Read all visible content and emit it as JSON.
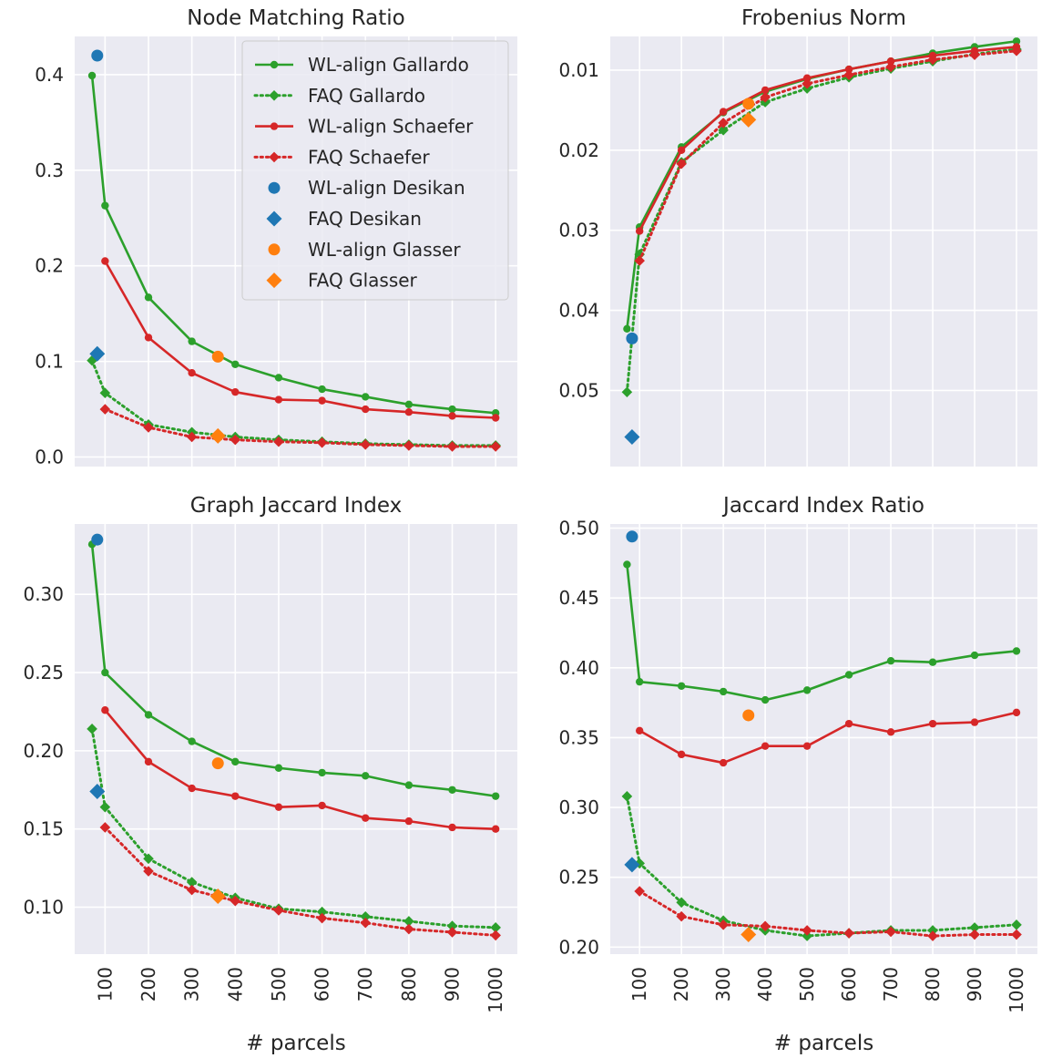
{
  "colors": {
    "gallardo": "#2ca02c",
    "schaefer": "#d62728",
    "desikan": "#1f77b4",
    "glasser": "#ff7f0e",
    "panel_bg": "#eaeaf2",
    "grid": "#ffffff"
  },
  "chart_data": [
    {
      "type": "line",
      "title": "Node Matching Ratio",
      "xlabel": "",
      "ylabel": "",
      "x_ticks": [
        "100",
        "200",
        "300",
        "400",
        "500",
        "600",
        "700",
        "800",
        "900",
        "1000"
      ],
      "y_ticks": [
        "0.0",
        "0.1",
        "0.2",
        "0.3",
        "0.4"
      ],
      "xlim": [
        30,
        1050
      ],
      "ylim": [
        -0.01,
        0.44
      ],
      "y_inverted": false,
      "grid": true,
      "legend_position": "top-right",
      "legend": [
        "WL-align Gallardo",
        "FAQ Gallardo",
        "WL-align Schaefer",
        "FAQ Schaefer",
        "WL-align Desikan",
        "FAQ Desikan",
        "WL-align Glasser",
        "FAQ Glasser"
      ],
      "series": [
        {
          "name": "WL-align Gallardo",
          "color_key": "gallardo",
          "style": "solid",
          "marker": "circle",
          "x": [
            70,
            100,
            200,
            300,
            400,
            500,
            600,
            700,
            800,
            900,
            1000
          ],
          "y": [
            0.399,
            0.263,
            0.167,
            0.121,
            0.097,
            0.083,
            0.071,
            0.063,
            0.055,
            0.05,
            0.046
          ]
        },
        {
          "name": "FAQ Gallardo",
          "color_key": "gallardo",
          "style": "dotted",
          "marker": "diamond",
          "x": [
            70,
            100,
            200,
            300,
            400,
            500,
            600,
            700,
            800,
            900,
            1000
          ],
          "y": [
            0.101,
            0.067,
            0.034,
            0.026,
            0.021,
            0.018,
            0.016,
            0.014,
            0.013,
            0.012,
            0.012
          ]
        },
        {
          "name": "WL-align Schaefer",
          "color_key": "schaefer",
          "style": "solid",
          "marker": "circle",
          "x": [
            100,
            200,
            300,
            400,
            500,
            600,
            700,
            800,
            900,
            1000
          ],
          "y": [
            0.205,
            0.125,
            0.088,
            0.068,
            0.06,
            0.059,
            0.05,
            0.047,
            0.043,
            0.041
          ]
        },
        {
          "name": "FAQ Schaefer",
          "color_key": "schaefer",
          "style": "dotted",
          "marker": "diamond",
          "x": [
            100,
            200,
            300,
            400,
            500,
            600,
            700,
            800,
            900,
            1000
          ],
          "y": [
            0.05,
            0.031,
            0.021,
            0.018,
            0.016,
            0.015,
            0.013,
            0.012,
            0.011,
            0.011
          ]
        }
      ],
      "points": [
        {
          "name": "WL-align Desikan",
          "color_key": "desikan",
          "marker": "circle",
          "x": 82,
          "y": 0.42
        },
        {
          "name": "FAQ Desikan",
          "color_key": "desikan",
          "marker": "diamond",
          "x": 82,
          "y": 0.108
        },
        {
          "name": "WL-align Glasser",
          "color_key": "glasser",
          "marker": "circle",
          "x": 360,
          "y": 0.105
        },
        {
          "name": "FAQ Glasser",
          "color_key": "glasser",
          "marker": "diamond",
          "x": 360,
          "y": 0.022
        }
      ]
    },
    {
      "type": "line",
      "title": "Frobenius Norm",
      "xlabel": "",
      "ylabel": "",
      "x_ticks": [
        "100",
        "200",
        "300",
        "400",
        "500",
        "600",
        "700",
        "800",
        "900",
        "1000"
      ],
      "y_ticks": [
        "0.01",
        "0.02",
        "0.03",
        "0.04",
        "0.05"
      ],
      "xlim": [
        30,
        1050
      ],
      "ylim": [
        0.0058,
        0.0595
      ],
      "y_inverted": true,
      "grid": true,
      "series": [
        {
          "name": "WL-align Gallardo",
          "color_key": "gallardo",
          "style": "solid",
          "marker": "circle",
          "x": [
            70,
            100,
            200,
            300,
            400,
            500,
            600,
            700,
            800,
            900,
            1000
          ],
          "y": [
            0.0423,
            0.0296,
            0.0196,
            0.0153,
            0.0127,
            0.0111,
            0.0099,
            0.0089,
            0.0079,
            0.0071,
            0.0064
          ]
        },
        {
          "name": "FAQ Gallardo",
          "color_key": "gallardo",
          "style": "dotted",
          "marker": "diamond",
          "x": [
            70,
            100,
            200,
            300,
            400,
            500,
            600,
            700,
            800,
            900,
            1000
          ],
          "y": [
            0.0502,
            0.033,
            0.0215,
            0.0175,
            0.014,
            0.0123,
            0.0109,
            0.0098,
            0.0089,
            0.008,
            0.0074
          ]
        },
        {
          "name": "WL-align Schaefer",
          "color_key": "schaefer",
          "style": "solid",
          "marker": "circle",
          "x": [
            100,
            200,
            300,
            400,
            500,
            600,
            700,
            800,
            900,
            1000
          ],
          "y": [
            0.0301,
            0.02,
            0.0152,
            0.0125,
            0.011,
            0.0099,
            0.0089,
            0.0082,
            0.0076,
            0.0071
          ]
        },
        {
          "name": "FAQ Schaefer",
          "color_key": "schaefer",
          "style": "dotted",
          "marker": "diamond",
          "x": [
            100,
            200,
            300,
            400,
            500,
            600,
            700,
            800,
            900,
            1000
          ],
          "y": [
            0.0338,
            0.0217,
            0.0166,
            0.0134,
            0.0117,
            0.0106,
            0.0096,
            0.0087,
            0.0081,
            0.0076
          ]
        }
      ],
      "points": [
        {
          "name": "WL-align Desikan",
          "color_key": "desikan",
          "marker": "circle",
          "x": 82,
          "y": 0.0435
        },
        {
          "name": "FAQ Desikan",
          "color_key": "desikan",
          "marker": "diamond",
          "x": 82,
          "y": 0.0558
        },
        {
          "name": "WL-align Glasser",
          "color_key": "glasser",
          "marker": "circle",
          "x": 360,
          "y": 0.0142
        },
        {
          "name": "FAQ Glasser",
          "color_key": "glasser",
          "marker": "diamond",
          "x": 360,
          "y": 0.0162
        }
      ]
    },
    {
      "type": "line",
      "title": "Graph Jaccard Index",
      "xlabel": "# parcels",
      "ylabel": "",
      "x_ticks": [
        "100",
        "200",
        "300",
        "400",
        "500",
        "600",
        "700",
        "800",
        "900",
        "1000"
      ],
      "y_ticks": [
        "0.10",
        "0.15",
        "0.20",
        "0.25",
        "0.30"
      ],
      "xlim": [
        30,
        1050
      ],
      "ylim": [
        0.07,
        0.345
      ],
      "y_inverted": false,
      "grid": true,
      "series": [
        {
          "name": "WL-align Gallardo",
          "color_key": "gallardo",
          "style": "solid",
          "marker": "circle",
          "x": [
            70,
            100,
            200,
            300,
            400,
            500,
            600,
            700,
            800,
            900,
            1000
          ],
          "y": [
            0.332,
            0.25,
            0.223,
            0.206,
            0.193,
            0.189,
            0.186,
            0.184,
            0.178,
            0.175,
            0.171
          ]
        },
        {
          "name": "FAQ Gallardo",
          "color_key": "gallardo",
          "style": "dotted",
          "marker": "diamond",
          "x": [
            70,
            100,
            200,
            300,
            400,
            500,
            600,
            700,
            800,
            900,
            1000
          ],
          "y": [
            0.214,
            0.164,
            0.131,
            0.116,
            0.106,
            0.099,
            0.097,
            0.094,
            0.091,
            0.088,
            0.087
          ]
        },
        {
          "name": "WL-align Schaefer",
          "color_key": "schaefer",
          "style": "solid",
          "marker": "circle",
          "x": [
            100,
            200,
            300,
            400,
            500,
            600,
            700,
            800,
            900,
            1000
          ],
          "y": [
            0.226,
            0.193,
            0.176,
            0.171,
            0.164,
            0.165,
            0.157,
            0.155,
            0.151,
            0.15
          ]
        },
        {
          "name": "FAQ Schaefer",
          "color_key": "schaefer",
          "style": "dotted",
          "marker": "diamond",
          "x": [
            100,
            200,
            300,
            400,
            500,
            600,
            700,
            800,
            900,
            1000
          ],
          "y": [
            0.151,
            0.123,
            0.111,
            0.104,
            0.098,
            0.093,
            0.09,
            0.086,
            0.084,
            0.082
          ]
        }
      ],
      "points": [
        {
          "name": "WL-align Desikan",
          "color_key": "desikan",
          "marker": "circle",
          "x": 82,
          "y": 0.335
        },
        {
          "name": "FAQ Desikan",
          "color_key": "desikan",
          "marker": "diamond",
          "x": 82,
          "y": 0.174
        },
        {
          "name": "WL-align Glasser",
          "color_key": "glasser",
          "marker": "circle",
          "x": 360,
          "y": 0.192
        },
        {
          "name": "FAQ Glasser",
          "color_key": "glasser",
          "marker": "diamond",
          "x": 360,
          "y": 0.107
        }
      ]
    },
    {
      "type": "line",
      "title": "Jaccard Index Ratio",
      "xlabel": "# parcels",
      "ylabel": "",
      "x_ticks": [
        "100",
        "200",
        "300",
        "400",
        "500",
        "600",
        "700",
        "800",
        "900",
        "1000"
      ],
      "y_ticks": [
        "0.20",
        "0.25",
        "0.30",
        "0.35",
        "0.40",
        "0.45",
        "0.50"
      ],
      "xlim": [
        30,
        1050
      ],
      "ylim": [
        0.195,
        0.503
      ],
      "y_inverted": false,
      "grid": true,
      "series": [
        {
          "name": "WL-align Gallardo",
          "color_key": "gallardo",
          "style": "solid",
          "marker": "circle",
          "x": [
            70,
            100,
            200,
            300,
            400,
            500,
            600,
            700,
            800,
            900,
            1000
          ],
          "y": [
            0.474,
            0.39,
            0.387,
            0.383,
            0.377,
            0.384,
            0.395,
            0.405,
            0.404,
            0.409,
            0.412
          ]
        },
        {
          "name": "FAQ Gallardo",
          "color_key": "gallardo",
          "style": "dotted",
          "marker": "diamond",
          "x": [
            70,
            100,
            200,
            300,
            400,
            500,
            600,
            700,
            800,
            900,
            1000
          ],
          "y": [
            0.308,
            0.26,
            0.232,
            0.219,
            0.212,
            0.208,
            0.21,
            0.212,
            0.212,
            0.214,
            0.216
          ]
        },
        {
          "name": "WL-align Schaefer",
          "color_key": "schaefer",
          "style": "solid",
          "marker": "circle",
          "x": [
            100,
            200,
            300,
            400,
            500,
            600,
            700,
            800,
            900,
            1000
          ],
          "y": [
            0.355,
            0.338,
            0.332,
            0.344,
            0.344,
            0.36,
            0.354,
            0.36,
            0.361,
            0.368
          ]
        },
        {
          "name": "FAQ Schaefer",
          "color_key": "schaefer",
          "style": "dotted",
          "marker": "diamond",
          "x": [
            100,
            200,
            300,
            400,
            500,
            600,
            700,
            800,
            900,
            1000
          ],
          "y": [
            0.24,
            0.222,
            0.216,
            0.215,
            0.212,
            0.21,
            0.211,
            0.208,
            0.209,
            0.209
          ]
        }
      ],
      "points": [
        {
          "name": "WL-align Desikan",
          "color_key": "desikan",
          "marker": "circle",
          "x": 82,
          "y": 0.494
        },
        {
          "name": "FAQ Desikan",
          "color_key": "desikan",
          "marker": "diamond",
          "x": 82,
          "y": 0.259
        },
        {
          "name": "WL-align Glasser",
          "color_key": "glasser",
          "marker": "circle",
          "x": 360,
          "y": 0.366
        },
        {
          "name": "FAQ Glasser",
          "color_key": "glasser",
          "marker": "diamond",
          "x": 360,
          "y": 0.209
        }
      ]
    }
  ]
}
